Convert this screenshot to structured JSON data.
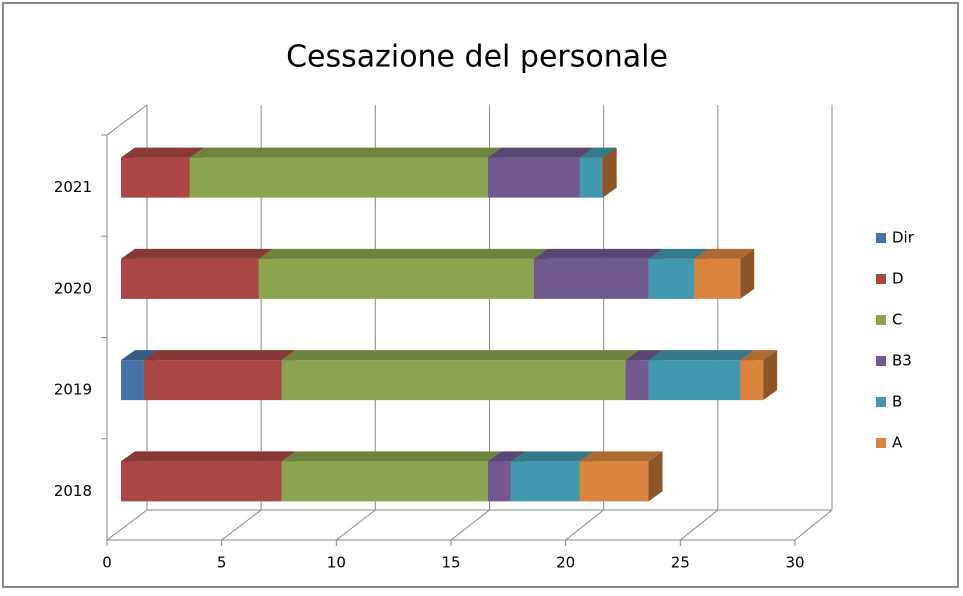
{
  "chart_data": {
    "type": "bar",
    "orientation": "horizontal",
    "stacked": true,
    "three_d": true,
    "title": "Cessazione del personale",
    "categories": [
      "2018",
      "2019",
      "2020",
      "2021"
    ],
    "series": [
      {
        "name": "Dir",
        "color": "#4572a7",
        "values": [
          0,
          1,
          0,
          0
        ]
      },
      {
        "name": "D",
        "color": "#aa4643",
        "values": [
          7,
          6,
          6,
          3
        ]
      },
      {
        "name": "C",
        "color": "#89a54e",
        "values": [
          9,
          15,
          12,
          13
        ]
      },
      {
        "name": "B3",
        "color": "#71588f",
        "values": [
          1,
          1,
          5,
          4
        ]
      },
      {
        "name": "B",
        "color": "#4198af",
        "values": [
          3,
          4,
          2,
          1
        ]
      },
      {
        "name": "A",
        "color": "#db843d",
        "values": [
          3,
          1,
          2,
          0
        ]
      }
    ],
    "xlim": [
      0,
      30
    ],
    "xticks": [
      0,
      5,
      10,
      15,
      20,
      25,
      30
    ],
    "grid": true,
    "legend": "right"
  }
}
